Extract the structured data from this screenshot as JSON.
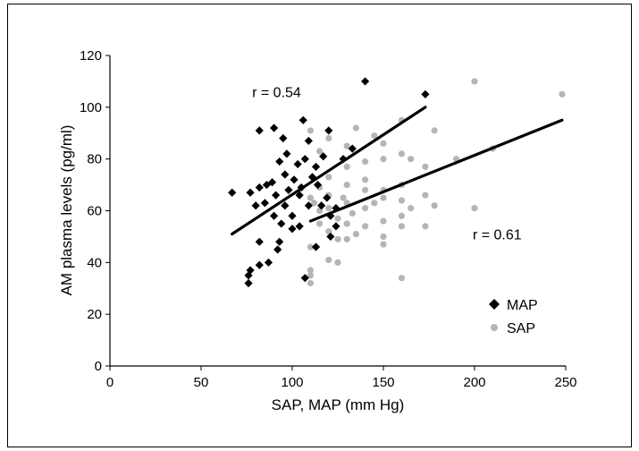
{
  "chart_data": {
    "type": "scatter",
    "title": "",
    "xlabel": "SAP, MAP (mm Hg)",
    "ylabel": "AM plasma levels (pg/ml)",
    "xlim": [
      0,
      250
    ],
    "ylim": [
      0,
      120
    ],
    "xticks": [
      "0",
      "50",
      "100",
      "150",
      "200",
      "250"
    ],
    "yticks": [
      "0",
      "20",
      "40",
      "60",
      "80",
      "100",
      "120"
    ],
    "grid": false,
    "legend": "bottom-right",
    "series": [
      {
        "name": "MAP",
        "marker": "diamond",
        "color": "#000000",
        "points": [
          [
            140,
            110
          ],
          [
            173,
            105
          ],
          [
            106,
            95
          ],
          [
            90,
            92
          ],
          [
            82,
            91
          ],
          [
            95,
            88
          ],
          [
            109,
            87
          ],
          [
            120,
            91
          ],
          [
            117,
            81
          ],
          [
            97,
            82
          ],
          [
            133,
            84
          ],
          [
            128,
            80
          ],
          [
            93,
            79
          ],
          [
            103,
            78
          ],
          [
            107,
            80
          ],
          [
            113,
            77
          ],
          [
            96,
            74
          ],
          [
            111,
            73
          ],
          [
            101,
            72
          ],
          [
            89,
            71
          ],
          [
            86,
            70
          ],
          [
            82,
            69
          ],
          [
            105,
            69
          ],
          [
            114,
            70
          ],
          [
            98,
            68
          ],
          [
            77,
            67
          ],
          [
            67,
            67
          ],
          [
            91,
            66
          ],
          [
            104,
            66
          ],
          [
            119,
            65
          ],
          [
            85,
            63
          ],
          [
            80,
            62
          ],
          [
            96,
            62
          ],
          [
            109,
            62
          ],
          [
            116,
            62
          ],
          [
            124,
            61
          ],
          [
            90,
            58
          ],
          [
            100,
            58
          ],
          [
            121,
            58
          ],
          [
            94,
            55
          ],
          [
            104,
            54
          ],
          [
            124,
            54
          ],
          [
            100,
            53
          ],
          [
            121,
            50
          ],
          [
            82,
            48
          ],
          [
            93,
            48
          ],
          [
            92,
            45
          ],
          [
            113,
            46
          ],
          [
            87,
            40
          ],
          [
            82,
            39
          ],
          [
            77,
            37
          ],
          [
            76,
            35
          ],
          [
            107,
            34
          ],
          [
            76,
            32
          ]
        ]
      },
      {
        "name": "SAP",
        "marker": "circle",
        "color": "#b5b5b5",
        "points": [
          [
            200,
            110
          ],
          [
            248,
            105
          ],
          [
            160,
            95
          ],
          [
            110,
            91
          ],
          [
            135,
            92
          ],
          [
            178,
            91
          ],
          [
            145,
            89
          ],
          [
            150,
            86
          ],
          [
            130,
            85
          ],
          [
            160,
            82
          ],
          [
            210,
            84
          ],
          [
            115,
            83
          ],
          [
            120,
            88
          ],
          [
            150,
            80
          ],
          [
            165,
            80
          ],
          [
            140,
            79
          ],
          [
            190,
            80
          ],
          [
            130,
            77
          ],
          [
            173,
            77
          ],
          [
            120,
            73
          ],
          [
            140,
            72
          ],
          [
            130,
            70
          ],
          [
            160,
            70
          ],
          [
            115,
            69
          ],
          [
            140,
            68
          ],
          [
            150,
            68
          ],
          [
            120,
            66
          ],
          [
            173,
            66
          ],
          [
            110,
            65
          ],
          [
            128,
            65
          ],
          [
            150,
            65
          ],
          [
            160,
            64
          ],
          [
            112,
            63
          ],
          [
            130,
            63
          ],
          [
            145,
            63
          ],
          [
            178,
            62
          ],
          [
            120,
            61
          ],
          [
            140,
            61
          ],
          [
            165,
            61
          ],
          [
            200,
            61
          ],
          [
            115,
            60
          ],
          [
            133,
            59
          ],
          [
            160,
            58
          ],
          [
            125,
            57
          ],
          [
            150,
            56
          ],
          [
            115,
            55
          ],
          [
            130,
            55
          ],
          [
            140,
            54
          ],
          [
            160,
            54
          ],
          [
            173,
            54
          ],
          [
            120,
            52
          ],
          [
            135,
            51
          ],
          [
            150,
            50
          ],
          [
            125,
            49
          ],
          [
            130,
            49
          ],
          [
            110,
            46
          ],
          [
            150,
            47
          ],
          [
            120,
            41
          ],
          [
            125,
            40
          ],
          [
            110,
            37
          ],
          [
            110,
            35
          ],
          [
            160,
            34
          ],
          [
            110,
            32
          ]
        ]
      }
    ],
    "regression_lines": [
      {
        "series": "MAP",
        "x": [
          67,
          173
        ],
        "y": [
          51,
          100
        ]
      },
      {
        "series": "SAP",
        "x": [
          110,
          248
        ],
        "y": [
          56,
          95
        ]
      }
    ],
    "annotations": [
      {
        "text": "r = 0.54",
        "x": 78,
        "y": 104
      },
      {
        "text": "r = 0.61",
        "x": 199,
        "y": 49
      }
    ]
  }
}
